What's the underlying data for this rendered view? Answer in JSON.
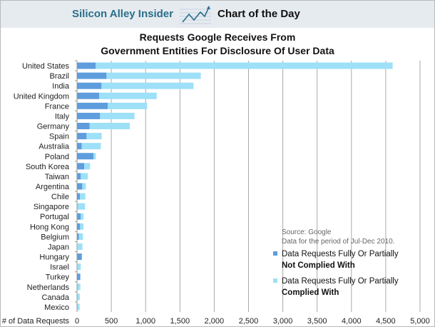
{
  "header": {
    "brand": "Silicon Alley Insider",
    "section": "Chart of the Day",
    "logo_icon": "trend-chart-icon"
  },
  "chart_data": {
    "type": "bar",
    "orientation": "horizontal",
    "stacked": true,
    "title": "Requests Google Receives From Government Entities For Disclosure Of User Data",
    "title_lines": [
      "Requests Google Receives From",
      "Government Entities For Disclosure Of User Data"
    ],
    "xlabel": "# of Data Requests",
    "xlim": [
      0,
      5000
    ],
    "xticks": [
      0,
      500,
      1000,
      1500,
      2000,
      2500,
      3000,
      3500,
      4000,
      4500,
      5000
    ],
    "xtick_labels": [
      "0",
      "500",
      "1,000",
      "1,500",
      "2,000",
      "2,500",
      "3,000",
      "3,500",
      "4,000",
      "4,500",
      "5,000"
    ],
    "grid": true,
    "legend_position": "bottom-right",
    "categories": [
      "United States",
      "Brazil",
      "India",
      "United Kingdom",
      "France",
      "Italy",
      "Germany",
      "Spain",
      "Australia",
      "Poland",
      "South Korea",
      "Taiwan",
      "Argentina",
      "Chile",
      "Singapore",
      "Portugal",
      "Hong Kong",
      "Belgium",
      "Japan",
      "Hungary",
      "Israel",
      "Turkey",
      "Netherlands",
      "Canada",
      "Mexico"
    ],
    "series": [
      {
        "name": "Data Requests Fully Or Partially Not Complied With",
        "legend_lines": [
          "Data Requests Fully Or Partially",
          "Not Complied With"
        ],
        "color": "#5e9ddd",
        "values": [
          273,
          430,
          357,
          322,
          447,
          336,
          183,
          139,
          69,
          239,
          104,
          55,
          76,
          42,
          8,
          52,
          45,
          28,
          3,
          70,
          6,
          48,
          6,
          6,
          6
        ]
      },
      {
        "name": "Data Requests Fully Or Partially Complied With",
        "legend_lines": [
          "Data Requests Fully Or Partially",
          "Complied With"
        ],
        "color": "#9de0f8",
        "values": [
          4328,
          1374,
          1341,
          840,
          575,
          502,
          586,
          221,
          278,
          35,
          86,
          101,
          52,
          79,
          109,
          42,
          49,
          59,
          76,
          1,
          49,
          1,
          43,
          35,
          32
        ]
      }
    ],
    "annotation": [
      "Source: Google",
      "Data for the period of Jul-Dec 2010."
    ]
  }
}
